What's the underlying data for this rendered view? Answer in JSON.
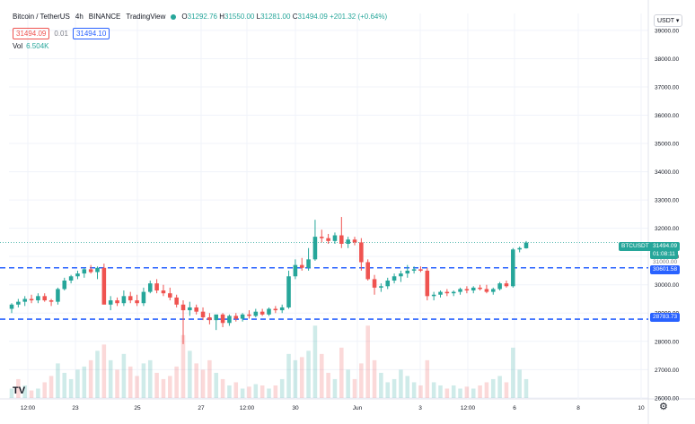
{
  "header": {
    "symbol": "Bitcoin / TetherUS",
    "interval": "4h",
    "exchange": "BINANCE",
    "source": "TradingView",
    "ohlc": {
      "o_label": "O",
      "o": "31292.76",
      "h_label": "H",
      "h": "31550.00",
      "l_label": "L",
      "l": "31281.00",
      "c_label": "C",
      "c": "31494.09",
      "change": "+201.32 (+0.64%)"
    },
    "sell_price": "31494.09",
    "spread": "0.01",
    "buy_price": "31494.10",
    "volume_label": "Vol",
    "volume_value": "6.504K",
    "currency_selector": "USDT"
  },
  "colors": {
    "up": "#26a69a",
    "down": "#ef5350",
    "line_blue": "#2962ff",
    "price_line": "#26a69a"
  },
  "icons": {
    "logo": "tradingview-logo-icon",
    "settings": "gear-icon",
    "status": "live-dot-icon"
  },
  "price_tags": {
    "symbol_tag": "BTCUSDT",
    "current_price": "31494.09",
    "countdown": "01:08:11",
    "third_tag": "31000.00"
  },
  "chart_data": {
    "type": "candlestick",
    "y_axis_ticks": [
      "39000.00",
      "38000.00",
      "37000.00",
      "36000.00",
      "35000.00",
      "34000.00",
      "33000.00",
      "32000.00",
      "31000.00",
      "30000.00",
      "29000.00",
      "28000.00",
      "27000.00",
      "26000.00"
    ],
    "ylim": [
      25900,
      39600
    ],
    "x_axis_labels": [
      "12:00",
      "23",
      "25",
      "27",
      "12:00",
      "30",
      "Jun",
      "3",
      "12:00",
      "6",
      "8",
      "10"
    ],
    "grid": true,
    "horizontal_lines": [
      {
        "value": 30601.58,
        "label": "30601.58",
        "style": "dashed",
        "color": "#2962ff"
      },
      {
        "value": 28783.73,
        "label": "28783.73",
        "style": "dashed",
        "color": "#2962ff"
      }
    ],
    "current_price_line": 31494.09,
    "candles": [
      {
        "o": 29150,
        "h": 29350,
        "l": 29000,
        "c": 29300
      },
      {
        "o": 29300,
        "h": 29500,
        "l": 29200,
        "c": 29400
      },
      {
        "o": 29400,
        "h": 29600,
        "l": 29250,
        "c": 29500
      },
      {
        "o": 29500,
        "h": 29650,
        "l": 29350,
        "c": 29450
      },
      {
        "o": 29450,
        "h": 29700,
        "l": 29350,
        "c": 29600
      },
      {
        "o": 29600,
        "h": 29700,
        "l": 29400,
        "c": 29450
      },
      {
        "o": 29450,
        "h": 29500,
        "l": 29250,
        "c": 29400
      },
      {
        "o": 29400,
        "h": 29900,
        "l": 29300,
        "c": 29850
      },
      {
        "o": 29850,
        "h": 30250,
        "l": 29800,
        "c": 30150
      },
      {
        "o": 30150,
        "h": 30350,
        "l": 30050,
        "c": 30300
      },
      {
        "o": 30300,
        "h": 30500,
        "l": 30200,
        "c": 30400
      },
      {
        "o": 30400,
        "h": 30600,
        "l": 30250,
        "c": 30550
      },
      {
        "o": 30550,
        "h": 30700,
        "l": 30400,
        "c": 30450
      },
      {
        "o": 30450,
        "h": 30650,
        "l": 30200,
        "c": 30600
      },
      {
        "o": 30600,
        "h": 30750,
        "l": 29400,
        "c": 29300
      },
      {
        "o": 29300,
        "h": 29600,
        "l": 29100,
        "c": 29450
      },
      {
        "o": 29450,
        "h": 29550,
        "l": 29250,
        "c": 29350
      },
      {
        "o": 29350,
        "h": 29800,
        "l": 29250,
        "c": 29600
      },
      {
        "o": 29600,
        "h": 29750,
        "l": 29350,
        "c": 29450
      },
      {
        "o": 29450,
        "h": 29650,
        "l": 29250,
        "c": 29350
      },
      {
        "o": 29350,
        "h": 29900,
        "l": 29250,
        "c": 29750
      },
      {
        "o": 29750,
        "h": 30150,
        "l": 29700,
        "c": 30050
      },
      {
        "o": 30050,
        "h": 30200,
        "l": 29700,
        "c": 29800
      },
      {
        "o": 29800,
        "h": 30000,
        "l": 29600,
        "c": 29700
      },
      {
        "o": 29700,
        "h": 29900,
        "l": 29450,
        "c": 29550
      },
      {
        "o": 29550,
        "h": 29650,
        "l": 29200,
        "c": 29300
      },
      {
        "o": 29300,
        "h": 29450,
        "l": 27900,
        "c": 29100
      },
      {
        "o": 29100,
        "h": 29400,
        "l": 28900,
        "c": 29200
      },
      {
        "o": 29200,
        "h": 29300,
        "l": 28950,
        "c": 29050
      },
      {
        "o": 29050,
        "h": 29200,
        "l": 28750,
        "c": 28850
      },
      {
        "o": 28850,
        "h": 29000,
        "l": 28600,
        "c": 28750
      },
      {
        "o": 28750,
        "h": 28850,
        "l": 28400,
        "c": 28950
      },
      {
        "o": 28950,
        "h": 29000,
        "l": 28500,
        "c": 28650
      },
      {
        "o": 28650,
        "h": 28950,
        "l": 28550,
        "c": 28900
      },
      {
        "o": 28900,
        "h": 29000,
        "l": 28700,
        "c": 28800
      },
      {
        "o": 28800,
        "h": 29000,
        "l": 28700,
        "c": 28950
      },
      {
        "o": 28950,
        "h": 29100,
        "l": 28800,
        "c": 28900
      },
      {
        "o": 28900,
        "h": 29150,
        "l": 28850,
        "c": 29050
      },
      {
        "o": 29050,
        "h": 29150,
        "l": 28900,
        "c": 28950
      },
      {
        "o": 28950,
        "h": 29200,
        "l": 28900,
        "c": 29150
      },
      {
        "o": 29150,
        "h": 29250,
        "l": 29000,
        "c": 29100
      },
      {
        "o": 29100,
        "h": 29300,
        "l": 29000,
        "c": 29200
      },
      {
        "o": 29200,
        "h": 30500,
        "l": 29150,
        "c": 30300
      },
      {
        "o": 30300,
        "h": 30900,
        "l": 30200,
        "c": 30700
      },
      {
        "o": 30700,
        "h": 30950,
        "l": 30500,
        "c": 30600
      },
      {
        "o": 30600,
        "h": 31300,
        "l": 30500,
        "c": 30900
      },
      {
        "o": 30900,
        "h": 32300,
        "l": 30850,
        "c": 31700
      },
      {
        "o": 31700,
        "h": 31950,
        "l": 31500,
        "c": 31650
      },
      {
        "o": 31650,
        "h": 31800,
        "l": 31450,
        "c": 31550
      },
      {
        "o": 31550,
        "h": 31850,
        "l": 31450,
        "c": 31750
      },
      {
        "o": 31750,
        "h": 32400,
        "l": 31300,
        "c": 31450
      },
      {
        "o": 31450,
        "h": 31700,
        "l": 31300,
        "c": 31600
      },
      {
        "o": 31600,
        "h": 31700,
        "l": 31400,
        "c": 31500
      },
      {
        "o": 31500,
        "h": 31650,
        "l": 30500,
        "c": 30800
      },
      {
        "o": 30800,
        "h": 30900,
        "l": 30150,
        "c": 30200
      },
      {
        "o": 30200,
        "h": 30350,
        "l": 29650,
        "c": 29900
      },
      {
        "o": 29900,
        "h": 30050,
        "l": 29750,
        "c": 29950
      },
      {
        "o": 29950,
        "h": 30250,
        "l": 29850,
        "c": 30150
      },
      {
        "o": 30150,
        "h": 30400,
        "l": 30050,
        "c": 30300
      },
      {
        "o": 30300,
        "h": 30500,
        "l": 30100,
        "c": 30400
      },
      {
        "o": 30400,
        "h": 30700,
        "l": 30250,
        "c": 30500
      },
      {
        "o": 30500,
        "h": 30650,
        "l": 30400,
        "c": 30550
      },
      {
        "o": 30550,
        "h": 30650,
        "l": 30450,
        "c": 30500
      },
      {
        "o": 30500,
        "h": 30600,
        "l": 29450,
        "c": 29600
      },
      {
        "o": 29600,
        "h": 29750,
        "l": 29450,
        "c": 29650
      },
      {
        "o": 29650,
        "h": 29800,
        "l": 29550,
        "c": 29750
      },
      {
        "o": 29750,
        "h": 29850,
        "l": 29600,
        "c": 29700
      },
      {
        "o": 29700,
        "h": 29800,
        "l": 29600,
        "c": 29750
      },
      {
        "o": 29750,
        "h": 29900,
        "l": 29650,
        "c": 29850
      },
      {
        "o": 29850,
        "h": 29950,
        "l": 29700,
        "c": 29800
      },
      {
        "o": 29800,
        "h": 29950,
        "l": 29700,
        "c": 29900
      },
      {
        "o": 29900,
        "h": 30000,
        "l": 29800,
        "c": 29850
      },
      {
        "o": 29850,
        "h": 30000,
        "l": 29700,
        "c": 29750
      },
      {
        "o": 29750,
        "h": 29900,
        "l": 29650,
        "c": 29850
      },
      {
        "o": 29850,
        "h": 30100,
        "l": 29800,
        "c": 30050
      },
      {
        "o": 30050,
        "h": 30150,
        "l": 29900,
        "c": 29950
      },
      {
        "o": 29950,
        "h": 31300,
        "l": 29900,
        "c": 31250
      },
      {
        "o": 31250,
        "h": 31350,
        "l": 31150,
        "c": 31300
      },
      {
        "o": 31292.76,
        "h": 31550,
        "l": 31281,
        "c": 31494.09
      }
    ],
    "volumes": [
      0.15,
      0.3,
      0.2,
      0.12,
      0.15,
      0.25,
      0.35,
      0.55,
      0.4,
      0.3,
      0.45,
      0.5,
      0.6,
      0.75,
      0.85,
      0.6,
      0.45,
      0.7,
      0.5,
      0.35,
      0.55,
      0.6,
      0.4,
      0.3,
      0.35,
      0.5,
      1.0,
      0.75,
      0.55,
      0.45,
      0.6,
      0.4,
      0.3,
      0.2,
      0.25,
      0.15,
      0.18,
      0.22,
      0.2,
      0.15,
      0.2,
      0.3,
      0.7,
      0.6,
      0.65,
      0.75,
      1.15,
      0.7,
      0.4,
      0.3,
      0.8,
      0.45,
      0.3,
      0.55,
      1.15,
      0.6,
      0.4,
      0.25,
      0.3,
      0.45,
      0.35,
      0.25,
      0.2,
      0.6,
      0.25,
      0.2,
      0.15,
      0.2,
      0.15,
      0.18,
      0.15,
      0.2,
      0.25,
      0.3,
      0.35,
      0.25,
      0.8,
      0.45,
      0.3
    ],
    "volume_colors": [
      1,
      0,
      1,
      0,
      1,
      0,
      0,
      1,
      1,
      1,
      1,
      1,
      0,
      1,
      0,
      1,
      0,
      1,
      0,
      0,
      1,
      1,
      0,
      0,
      0,
      0,
      0,
      1,
      0,
      0,
      0,
      1,
      0,
      1,
      0,
      1,
      0,
      1,
      0,
      1,
      0,
      1,
      1,
      1,
      0,
      1,
      1,
      0,
      0,
      1,
      0,
      1,
      0,
      0,
      0,
      0,
      1,
      1,
      1,
      1,
      1,
      1,
      0,
      0,
      1,
      1,
      0,
      1,
      1,
      0,
      1,
      0,
      0,
      1,
      1,
      0,
      1,
      1,
      1
    ]
  }
}
